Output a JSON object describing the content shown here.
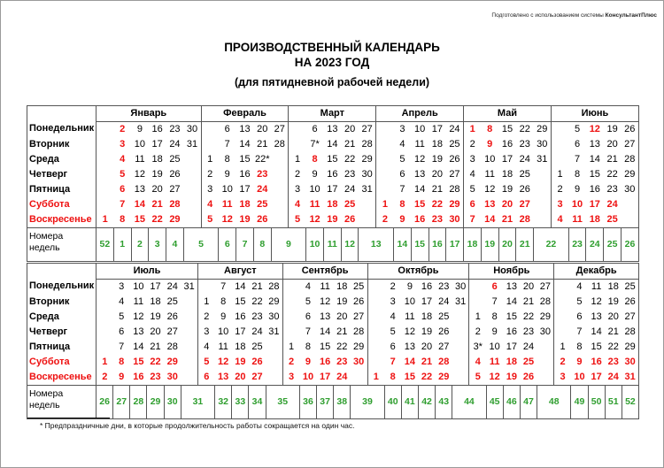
{
  "header": {
    "prepared_prefix": "Подготовлено с использованием системы ",
    "prepared_brand": "КонсультантПлюс"
  },
  "title": {
    "line1": "ПРОИЗВОДСТВЕННЫЙ КАЛЕНДАРЬ",
    "line2": "НА 2023 ГОД",
    "subtitle": "(для пятидневной рабочей недели)"
  },
  "colors": {
    "holiday_red": "#ee1111",
    "week_number_green": "#2f9e2f",
    "border_gray": "#555555"
  },
  "day_labels": [
    "Понедельник",
    "Вторник",
    "Среда",
    "Четверг",
    "Пятница",
    "Суббота",
    "Воскресенье"
  ],
  "weekend_rows": [
    5,
    6
  ],
  "week_row_label": "Номера недель",
  "footnote": "* Предпраздничные дни, в которые продолжительность работы сокращается на один час.",
  "halves": [
    {
      "months": [
        {
          "name": "Январь",
          "cols": 6,
          "rows": [
            [
              "",
              "2!",
              "9",
              "16",
              "23",
              "30"
            ],
            [
              "",
              "3!",
              "10",
              "17",
              "24",
              "31"
            ],
            [
              "",
              "4!",
              "11",
              "18",
              "25",
              ""
            ],
            [
              "",
              "5!",
              "12",
              "19",
              "26",
              ""
            ],
            [
              "",
              "6!",
              "13",
              "20",
              "27",
              ""
            ],
            [
              "",
              "7!",
              "14!",
              "21!",
              "28!",
              ""
            ],
            [
              "1!",
              "8!",
              "15!",
              "22!",
              "29!",
              ""
            ]
          ]
        },
        {
          "name": "Февраль",
          "cols": 5,
          "rows": [
            [
              "",
              "6",
              "13",
              "20",
              "27"
            ],
            [
              "",
              "7",
              "14",
              "21",
              "28"
            ],
            [
              "1",
              "8",
              "15",
              "22*",
              ""
            ],
            [
              "2",
              "9",
              "16",
              "23!",
              ""
            ],
            [
              "3",
              "10",
              "17",
              "24!",
              ""
            ],
            [
              "4!",
              "11!",
              "18!",
              "25!",
              ""
            ],
            [
              "5!",
              "12!",
              "19!",
              "26!",
              ""
            ]
          ]
        },
        {
          "name": "Март",
          "cols": 5,
          "rows": [
            [
              "",
              "6",
              "13",
              "20",
              "27"
            ],
            [
              "",
              "7*",
              "14",
              "21",
              "28"
            ],
            [
              "1",
              "8!",
              "15",
              "22",
              "29"
            ],
            [
              "2",
              "9",
              "16",
              "23",
              "30"
            ],
            [
              "3",
              "10",
              "17",
              "24",
              "31"
            ],
            [
              "4!",
              "11!",
              "18!",
              "25!",
              ""
            ],
            [
              "5!",
              "12!",
              "19!",
              "26!",
              ""
            ]
          ]
        },
        {
          "name": "Апрель",
          "cols": 5,
          "rows": [
            [
              "",
              "3",
              "10",
              "17",
              "24"
            ],
            [
              "",
              "4",
              "11",
              "18",
              "25"
            ],
            [
              "",
              "5",
              "12",
              "19",
              "26"
            ],
            [
              "",
              "6",
              "13",
              "20",
              "27"
            ],
            [
              "",
              "7",
              "14",
              "21",
              "28"
            ],
            [
              "1!",
              "8!",
              "15!",
              "22!",
              "29!"
            ],
            [
              "2!",
              "9!",
              "16!",
              "23!",
              "30!"
            ]
          ]
        },
        {
          "name": "Май",
          "cols": 5,
          "rows": [
            [
              "1!",
              "8!",
              "15",
              "22",
              "29"
            ],
            [
              "2",
              "9!",
              "16",
              "23",
              "30"
            ],
            [
              "3",
              "10",
              "17",
              "24",
              "31"
            ],
            [
              "4",
              "11",
              "18",
              "25",
              ""
            ],
            [
              "5",
              "12",
              "19",
              "26",
              ""
            ],
            [
              "6!",
              "13!",
              "20!",
              "27!",
              ""
            ],
            [
              "7!",
              "14!",
              "21!",
              "28!",
              ""
            ]
          ]
        },
        {
          "name": "Июнь",
          "cols": 5,
          "rows": [
            [
              "",
              "5",
              "12!",
              "19",
              "26"
            ],
            [
              "",
              "6",
              "13",
              "20",
              "27"
            ],
            [
              "",
              "7",
              "14",
              "21",
              "28"
            ],
            [
              "1",
              "8",
              "15",
              "22",
              "29"
            ],
            [
              "2",
              "9",
              "16",
              "23",
              "30"
            ],
            [
              "3!",
              "10!",
              "17!",
              "24!",
              ""
            ],
            [
              "4!",
              "11!",
              "18!",
              "25!",
              ""
            ]
          ]
        }
      ],
      "week_numbers": [
        {
          "n": "52",
          "span": 1
        },
        {
          "n": "1",
          "span": 1
        },
        {
          "n": "2",
          "span": 1
        },
        {
          "n": "3",
          "span": 1
        },
        {
          "n": "4",
          "span": 1
        },
        {
          "n": "5",
          "span": 2
        },
        {
          "n": "6",
          "span": 1
        },
        {
          "n": "7",
          "span": 1
        },
        {
          "n": "8",
          "span": 1
        },
        {
          "n": "9",
          "span": 2
        },
        {
          "n": "10",
          "span": 1
        },
        {
          "n": "11",
          "span": 1
        },
        {
          "n": "12",
          "span": 1
        },
        {
          "n": "13",
          "span": 2
        },
        {
          "n": "14",
          "span": 1
        },
        {
          "n": "15",
          "span": 1
        },
        {
          "n": "16",
          "span": 1
        },
        {
          "n": "17",
          "span": 1
        },
        {
          "n": "18",
          "span": 1
        },
        {
          "n": "19",
          "span": 1
        },
        {
          "n": "20",
          "span": 1
        },
        {
          "n": "21",
          "span": 1
        },
        {
          "n": "22",
          "span": 2
        },
        {
          "n": "23",
          "span": 1
        },
        {
          "n": "24",
          "span": 1
        },
        {
          "n": "25",
          "span": 1
        },
        {
          "n": "26",
          "span": 1
        }
      ]
    },
    {
      "months": [
        {
          "name": "Июль",
          "cols": 6,
          "rows": [
            [
              "",
              "3",
              "10",
              "17",
              "24",
              "31"
            ],
            [
              "",
              "4",
              "11",
              "18",
              "25",
              ""
            ],
            [
              "",
              "5",
              "12",
              "19",
              "26",
              ""
            ],
            [
              "",
              "6",
              "13",
              "20",
              "27",
              ""
            ],
            [
              "",
              "7",
              "14",
              "21",
              "28",
              ""
            ],
            [
              "1!",
              "8!",
              "15!",
              "22!",
              "29!",
              ""
            ],
            [
              "2!",
              "9!",
              "16!",
              "23!",
              "30!",
              ""
            ]
          ]
        },
        {
          "name": "Август",
          "cols": 5,
          "rows": [
            [
              "",
              "7",
              "14",
              "21",
              "28"
            ],
            [
              "1",
              "8",
              "15",
              "22",
              "29"
            ],
            [
              "2",
              "9",
              "16",
              "23",
              "30"
            ],
            [
              "3",
              "10",
              "17",
              "24",
              "31"
            ],
            [
              "4",
              "11",
              "18",
              "25",
              ""
            ],
            [
              "5!",
              "12!",
              "19!",
              "26!",
              ""
            ],
            [
              "6!",
              "13!",
              "20!",
              "27!",
              ""
            ]
          ]
        },
        {
          "name": "Сентябрь",
          "cols": 5,
          "rows": [
            [
              "",
              "4",
              "11",
              "18",
              "25"
            ],
            [
              "",
              "5",
              "12",
              "19",
              "26"
            ],
            [
              "",
              "6",
              "13",
              "20",
              "27"
            ],
            [
              "",
              "7",
              "14",
              "21",
              "28"
            ],
            [
              "1",
              "8",
              "15",
              "22",
              "29"
            ],
            [
              "2!",
              "9!",
              "16!",
              "23!",
              "30!"
            ],
            [
              "3!",
              "10!",
              "17!",
              "24!",
              ""
            ]
          ]
        },
        {
          "name": "Октябрь",
          "cols": 6,
          "rows": [
            [
              "",
              "2",
              "9",
              "16",
              "23",
              "30"
            ],
            [
              "",
              "3",
              "10",
              "17",
              "24",
              "31"
            ],
            [
              "",
              "4",
              "11",
              "18",
              "25",
              ""
            ],
            [
              "",
              "5",
              "12",
              "19",
              "26",
              ""
            ],
            [
              "",
              "6",
              "13",
              "20",
              "27",
              ""
            ],
            [
              "",
              "7!",
              "14!",
              "21!",
              "28!",
              ""
            ],
            [
              "1!",
              "8!",
              "15!",
              "22!",
              "29!",
              ""
            ]
          ]
        },
        {
          "name": "Ноябрь",
          "cols": 5,
          "rows": [
            [
              "",
              "6!",
              "13",
              "20",
              "27"
            ],
            [
              "",
              "7",
              "14",
              "21",
              "28"
            ],
            [
              "1",
              "8",
              "15",
              "22",
              "29"
            ],
            [
              "2",
              "9",
              "16",
              "23",
              "30"
            ],
            [
              "3*",
              "10",
              "17",
              "24",
              ""
            ],
            [
              "4!",
              "11!",
              "18!",
              "25!",
              ""
            ],
            [
              "5!",
              "12!",
              "19!",
              "26!",
              ""
            ]
          ]
        },
        {
          "name": "Декабрь",
          "cols": 5,
          "rows": [
            [
              "",
              "4",
              "11",
              "18",
              "25"
            ],
            [
              "",
              "5",
              "12",
              "19",
              "26"
            ],
            [
              "",
              "6",
              "13",
              "20",
              "27"
            ],
            [
              "",
              "7",
              "14",
              "21",
              "28"
            ],
            [
              "1",
              "8",
              "15",
              "22",
              "29"
            ],
            [
              "2!",
              "9!",
              "16!",
              "23!",
              "30!"
            ],
            [
              "3!",
              "10!",
              "17!",
              "24!",
              "31!"
            ]
          ]
        }
      ],
      "week_numbers": [
        {
          "n": "26",
          "span": 1
        },
        {
          "n": "27",
          "span": 1
        },
        {
          "n": "28",
          "span": 1
        },
        {
          "n": "29",
          "span": 1
        },
        {
          "n": "30",
          "span": 1
        },
        {
          "n": "31",
          "span": 2
        },
        {
          "n": "32",
          "span": 1
        },
        {
          "n": "33",
          "span": 1
        },
        {
          "n": "34",
          "span": 1
        },
        {
          "n": "35",
          "span": 2
        },
        {
          "n": "36",
          "span": 1
        },
        {
          "n": "37",
          "span": 1
        },
        {
          "n": "38",
          "span": 1
        },
        {
          "n": "39",
          "span": 2
        },
        {
          "n": "40",
          "span": 1
        },
        {
          "n": "41",
          "span": 1
        },
        {
          "n": "42",
          "span": 1
        },
        {
          "n": "43",
          "span": 1
        },
        {
          "n": "44",
          "span": 2
        },
        {
          "n": "45",
          "span": 1
        },
        {
          "n": "46",
          "span": 1
        },
        {
          "n": "47",
          "span": 1
        },
        {
          "n": "48",
          "span": 2
        },
        {
          "n": "49",
          "span": 1
        },
        {
          "n": "50",
          "span": 1
        },
        {
          "n": "51",
          "span": 1
        },
        {
          "n": "52",
          "span": 1
        }
      ]
    }
  ]
}
